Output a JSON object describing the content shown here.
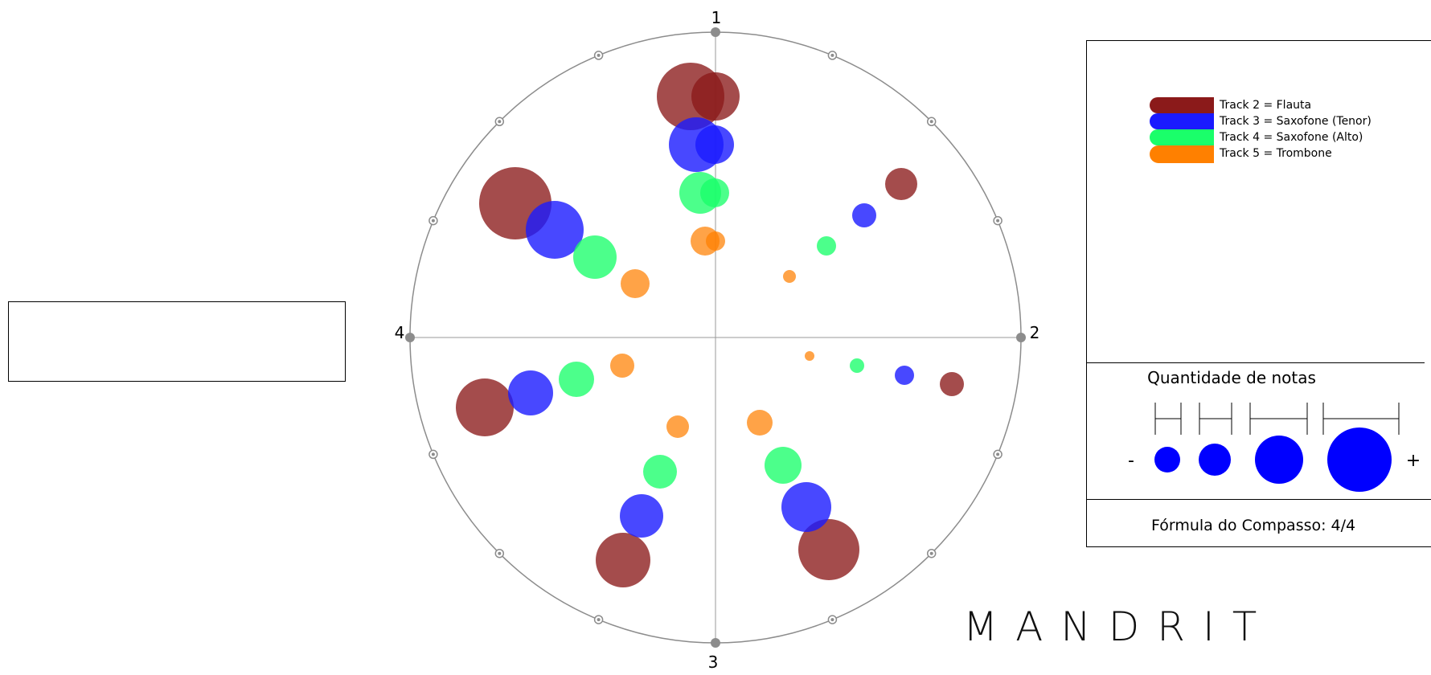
{
  "clock": {
    "beat_labels": [
      "1",
      "2",
      "3",
      "4"
    ],
    "tracks": [
      {
        "id": "flauta",
        "color": "#8b1a1a",
        "alpha": 0.78
      },
      {
        "id": "tenor",
        "color": "#1a1aff",
        "alpha": 0.8
      },
      {
        "id": "alto",
        "color": "#1aff6a",
        "alpha": 0.78
      },
      {
        "id": "trombone",
        "color": "#ff8000",
        "alpha": 0.72
      }
    ]
  },
  "legend": {
    "items": [
      {
        "label": "Track 2 = Flauta",
        "color": "#8b1a1a"
      },
      {
        "label": "Track 3 = Saxofone (Tenor)",
        "color": "#1a1aff"
      },
      {
        "label": "Track 4 = Saxofone (Alto)",
        "color": "#1aff6a"
      },
      {
        "label": "Track 5 = Trombone",
        "color": "#ff8000"
      }
    ]
  },
  "quantity_scale": {
    "title": "Quantidade de notas",
    "minus_label": "-",
    "plus_label": "+",
    "circle_color": "#0000ff"
  },
  "formula": {
    "label": "Fórmula do Compasso: 4/4"
  },
  "brand": {
    "name": "MANDRIT"
  },
  "info_box": {
    "text": ""
  }
}
